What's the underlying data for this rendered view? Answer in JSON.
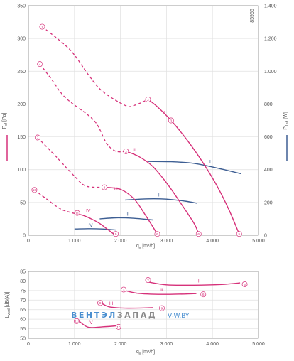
{
  "colors": {
    "pink": "#d6317a",
    "blue": "#3d5e93",
    "watermark_blue": "#4a8fd0",
    "watermark_grey": "#8a8a8a"
  },
  "chart_data": [
    {
      "type": "line",
      "id": "pressure-power",
      "code": "85956",
      "xlabel": "q",
      "xlabel_sub": "v",
      "xlabel_unit": "[m³/h]",
      "ylabel": "P",
      "ylabel_sub": "sf",
      "ylabel_unit": "[Pa]",
      "y2label": "P",
      "y2label_sub": "1ed",
      "y2label_unit": "[W]",
      "xlim": [
        0,
        5000
      ],
      "ylim": [
        0,
        350
      ],
      "y2lim": [
        0,
        1400
      ],
      "xticks": [
        0,
        1000,
        2000,
        3000,
        4000,
        5000
      ],
      "xtick_labels": [
        "0",
        "1.000",
        "2.000",
        "3.000",
        "4.000",
        "5.000"
      ],
      "yticks": [
        0,
        50,
        100,
        150,
        200,
        250,
        300,
        350
      ],
      "ytick_labels": [
        "0",
        "50",
        "100",
        "150",
        "200",
        "250",
        "300",
        "350"
      ],
      "y2ticks": [
        0,
        200,
        400,
        600,
        800,
        1000,
        1200,
        1400
      ],
      "y2tick_labels": [
        "0",
        "200",
        "400",
        "600",
        "800",
        "1.000",
        "1.200",
        "1.400"
      ],
      "pressure_series": [
        {
          "name": "I",
          "dashed": [
            [
              300,
              318
            ],
            [
              900,
              283
            ],
            [
              1300,
              245
            ],
            [
              1600,
              220
            ],
            [
              2100,
              198
            ],
            [
              2300,
              198
            ],
            [
              2600,
              207
            ]
          ],
          "solid": [
            [
              2600,
              207
            ],
            [
              2800,
              196
            ],
            [
              3100,
              175
            ],
            [
              3450,
              145
            ],
            [
              3800,
              110
            ],
            [
              4100,
              75
            ],
            [
              4350,
              40
            ],
            [
              4580,
              2
            ]
          ],
          "label": "I",
          "label_at": [
            2950,
            185
          ],
          "markers": [
            {
              "text": "1",
              "at": [
                300,
                318
              ]
            },
            {
              "text": "2",
              "at": [
                2600,
                207
              ]
            },
            {
              "text": "3",
              "at": [
                3100,
                175
              ]
            },
            {
              "text": "5",
              "at": [
                4580,
                2
              ]
            }
          ]
        },
        {
          "name": "II",
          "dashed": [
            [
              250,
              261
            ],
            [
              500,
              238
            ],
            [
              800,
              210
            ],
            [
              1300,
              183
            ],
            [
              1500,
              168
            ],
            [
              1700,
              140
            ],
            [
              1900,
              128
            ],
            [
              2120,
              128
            ]
          ],
          "solid": [
            [
              2120,
              128
            ],
            [
              2400,
              120
            ],
            [
              2700,
              105
            ],
            [
              3000,
              80
            ],
            [
              3300,
              50
            ],
            [
              3600,
              18
            ],
            [
              3700,
              2
            ]
          ],
          "label": "II",
          "label_at": [
            2300,
            128
          ],
          "markers": [
            {
              "text": "4",
              "at": [
                250,
                261
              ]
            },
            {
              "text": "3",
              "at": [
                2120,
                128
              ]
            },
            {
              "text": "6",
              "at": [
                3700,
                2
              ]
            }
          ]
        },
        {
          "name": "III",
          "dashed": [
            [
              200,
              149
            ],
            [
              600,
              120
            ],
            [
              1000,
              90
            ],
            [
              1250,
              75
            ],
            [
              1650,
              73
            ]
          ],
          "solid": [
            [
              1650,
              73
            ],
            [
              2000,
              70
            ],
            [
              2300,
              55
            ],
            [
              2550,
              30
            ],
            [
              2800,
              2
            ]
          ],
          "label": "III",
          "label_at": [
            1900,
            68
          ],
          "markers": [
            {
              "text": "7",
              "at": [
                200,
                149
              ]
            },
            {
              "text": "8",
              "at": [
                1650,
                73
              ]
            },
            {
              "text": "6",
              "at": [
                2800,
                2
              ]
            }
          ]
        },
        {
          "name": "IV",
          "dashed": [
            [
              130,
              69
            ],
            [
              400,
              55
            ],
            [
              700,
              40
            ],
            [
              950,
              34
            ]
          ],
          "solid": [
            [
              950,
              34
            ],
            [
              1200,
              30
            ],
            [
              1500,
              20
            ],
            [
              1700,
              10
            ],
            [
              1850,
              2
            ]
          ],
          "label": "IV",
          "label_at": [
            1300,
            35
          ],
          "markers": [
            {
              "text": "10",
              "at": [
                130,
                69
              ]
            },
            {
              "text": "11",
              "at": [
                1060,
                34
              ]
            },
            {
              "text": "9",
              "at": [
                1900,
                2
              ]
            }
          ]
        }
      ],
      "power_series": [
        {
          "name": "I",
          "points": [
            [
              2600,
              450
            ],
            [
              3100,
              448
            ],
            [
              3600,
              438
            ],
            [
              4100,
              410
            ],
            [
              4620,
              375
            ]
          ],
          "label": "I",
          "label_at": [
            3950,
            440
          ]
        },
        {
          "name": "II",
          "points": [
            [
              2100,
              215
            ],
            [
              2600,
              222
            ],
            [
              3000,
              220
            ],
            [
              3400,
              208
            ],
            [
              3670,
              195
            ]
          ],
          "label": "II",
          "label_at": [
            2850,
            237
          ]
        },
        {
          "name": "III",
          "points": [
            [
              1550,
              100
            ],
            [
              1900,
              106
            ],
            [
              2300,
              103
            ],
            [
              2700,
              93
            ]
          ],
          "label": "III",
          "label_at": [
            2150,
            120
          ]
        },
        {
          "name": "IV",
          "points": [
            [
              1000,
              38
            ],
            [
              1300,
              40
            ],
            [
              1600,
              38
            ],
            [
              1900,
              32
            ]
          ],
          "label": "IV",
          "label_at": [
            1350,
            52
          ]
        }
      ]
    },
    {
      "type": "line",
      "id": "sound-power",
      "xlabel": "q",
      "xlabel_sub": "v",
      "xlabel_unit": "[m³/h]",
      "ylabel": "L",
      "ylabel_sub": "wad",
      "ylabel_unit": "[dB(A)]",
      "xlim": [
        0,
        5000
      ],
      "ylim": [
        50,
        85
      ],
      "xticks": [
        0,
        1000,
        2000,
        3000,
        4000,
        5000
      ],
      "xtick_labels": [
        "0",
        "1.000",
        "2.000",
        "3.000",
        "4.000",
        "5.000"
      ],
      "yticks": [
        50,
        55,
        60,
        65,
        70,
        75,
        80,
        85
      ],
      "ytick_labels": [
        "50",
        "55",
        "60",
        "65",
        "70",
        "75",
        "80",
        "85"
      ],
      "series": [
        {
          "name": "I",
          "points": [
            [
              2600,
              79.5
            ],
            [
              3000,
              78
            ],
            [
              3600,
              77.8
            ],
            [
              4200,
              78.2
            ],
            [
              4600,
              79
            ]
          ],
          "label": "I",
          "label_at": [
            3700,
            79.2
          ],
          "markers": [
            {
              "text": "2",
              "at": [
                2600,
                80.5
              ]
            },
            {
              "text": "5",
              "at": [
                4700,
                78.3
              ]
            }
          ]
        },
        {
          "name": "II",
          "points": [
            [
              2100,
              75
            ],
            [
              2400,
              73.5
            ],
            [
              3000,
              73
            ],
            [
              3650,
              73.4
            ]
          ],
          "label": "II",
          "label_at": [
            2900,
            74.5
          ],
          "markers": [
            {
              "text": "3",
              "at": [
                2070,
                75.5
              ]
            },
            {
              "text": "6",
              "at": [
                3800,
                73
              ]
            }
          ]
        },
        {
          "name": "III",
          "points": [
            [
              1550,
              69
            ],
            [
              1750,
              66.5
            ],
            [
              2100,
              65.8
            ],
            [
              2700,
              66
            ]
          ],
          "label": "III",
          "label_at": [
            1800,
            67.5
          ],
          "markers": [
            {
              "text": "8",
              "at": [
                1560,
                68.5
              ]
            },
            {
              "text": "9",
              "at": [
                2900,
                65.8
              ]
            }
          ]
        },
        {
          "name": "IV",
          "points": [
            [
              1100,
              59
            ],
            [
              1300,
              55.8
            ],
            [
              1600,
              56
            ],
            [
              1900,
              56.5
            ]
          ],
          "label": "IV",
          "label_at": [
            1350,
            57.5
          ],
          "markers": [
            {
              "text": "10",
              "at": [
                1050,
                59
              ]
            },
            {
              "text": "10",
              "at": [
                1960,
                56
              ]
            }
          ]
        }
      ]
    }
  ],
  "watermark": {
    "brand_part1": "ВЕНТЭЛ",
    "brand_part2": "ЗАПАД",
    "domain": "V-W.BY"
  }
}
